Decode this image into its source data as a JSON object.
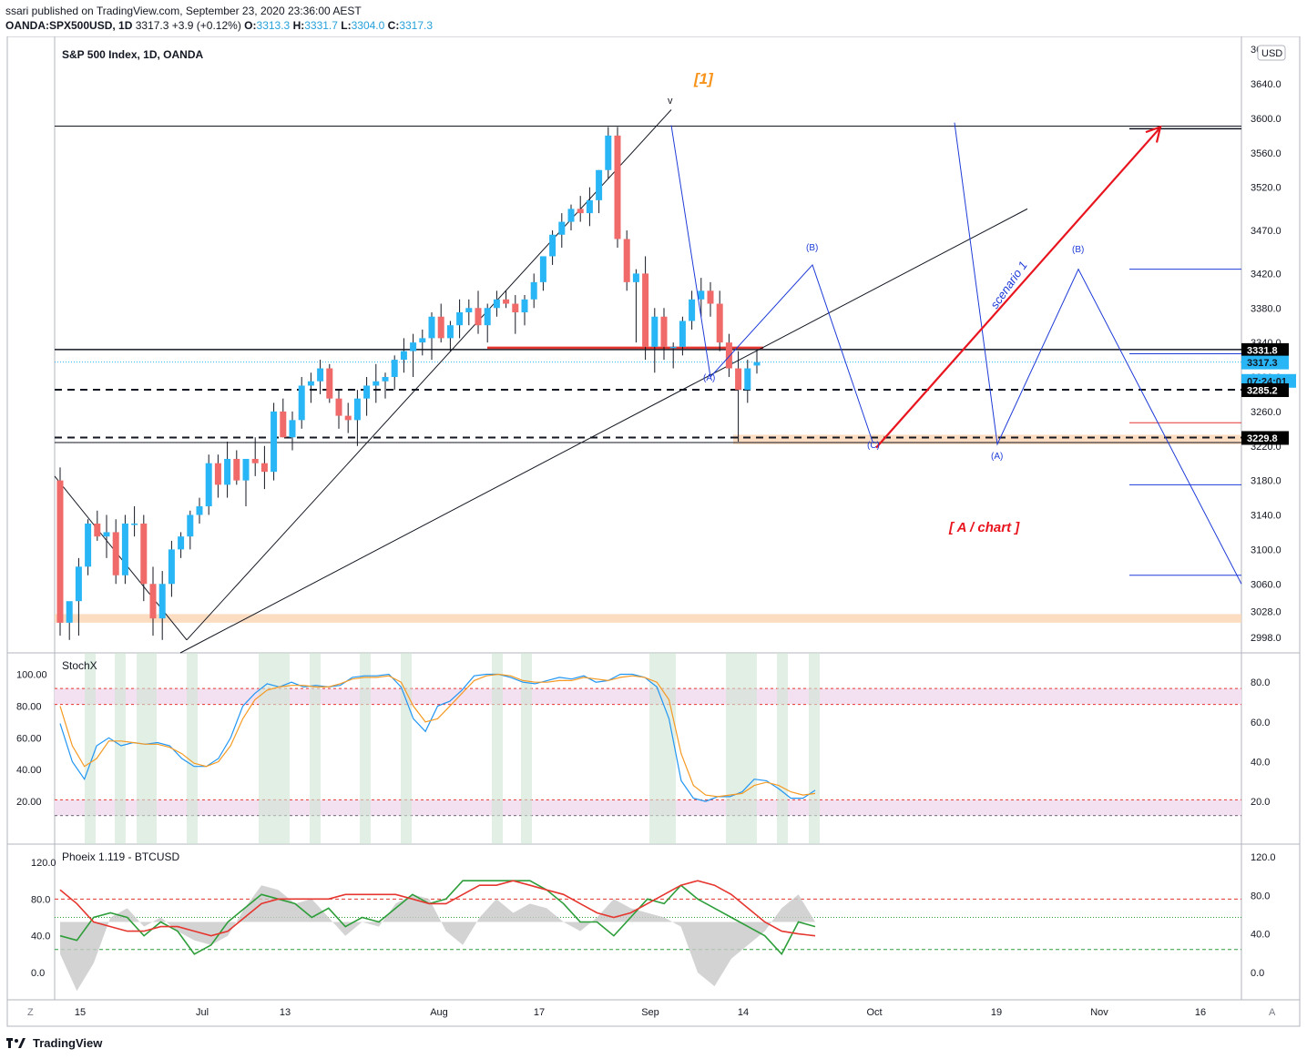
{
  "header": {
    "published": "ssari published on TradingView.com, September 23, 2020 23:36:00 AEST",
    "symbol": "OANDA:SPX500USD, 1D",
    "last": "3317.3",
    "change": "+3.9 (+0.12%)",
    "o_label": "O:",
    "o": "3313.3",
    "h_label": "H:",
    "h": "3331.7",
    "l_label": "L:",
    "l": "3304.0",
    "c_label": "C:",
    "c": "3317.3"
  },
  "chart_data": [
    {
      "type": "candlestick",
      "title": "S&P 500 Index, 1D, OANDA",
      "currency": "USD",
      "ylim": [
        2980,
        3695
      ],
      "y_ticks": [
        "2998.0",
        "3028.0",
        "3060.0",
        "3100.0",
        "3140.0",
        "3180.0",
        "3220.0",
        "3260.0",
        "3300.0",
        "3340.0",
        "3380.0",
        "3420.0",
        "3470.0",
        "3520.0",
        "3560.0",
        "3600.0",
        "3640.0",
        "3680.0"
      ],
      "x_ticks": [
        "15",
        "Jul",
        "13",
        "Aug",
        "17",
        "Sep",
        "14",
        "Oct",
        "19",
        "Nov",
        "16"
      ],
      "candles": [
        [
          3180,
          3195,
          3000,
          3015
        ],
        [
          3015,
          3035,
          2995,
          3040
        ],
        [
          3040,
          3090,
          3000,
          3080
        ],
        [
          3080,
          3135,
          3070,
          3130
        ],
        [
          3130,
          3145,
          3110,
          3115
        ],
        [
          3115,
          3140,
          3090,
          3120
        ],
        [
          3120,
          3135,
          3060,
          3070
        ],
        [
          3070,
          3140,
          3060,
          3130
        ],
        [
          3130,
          3150,
          3115,
          3130
        ],
        [
          3130,
          3140,
          3040,
          3060
        ],
        [
          3060,
          3080,
          3000,
          3020
        ],
        [
          3020,
          3075,
          2995,
          3060
        ],
        [
          3060,
          3110,
          3045,
          3100
        ],
        [
          3100,
          3120,
          3090,
          3115
        ],
        [
          3115,
          3145,
          3100,
          3140
        ],
        [
          3140,
          3160,
          3130,
          3150
        ],
        [
          3150,
          3210,
          3140,
          3200
        ],
        [
          3200,
          3210,
          3160,
          3175
        ],
        [
          3175,
          3225,
          3160,
          3205
        ],
        [
          3205,
          3215,
          3175,
          3180
        ],
        [
          3180,
          3205,
          3150,
          3205
        ],
        [
          3205,
          3230,
          3185,
          3200
        ],
        [
          3200,
          3220,
          3170,
          3190
        ],
        [
          3190,
          3270,
          3180,
          3260
        ],
        [
          3260,
          3275,
          3230,
          3230
        ],
        [
          3230,
          3260,
          3215,
          3250
        ],
        [
          3250,
          3300,
          3240,
          3290
        ],
        [
          3290,
          3305,
          3270,
          3295
        ],
        [
          3295,
          3320,
          3280,
          3310
        ],
        [
          3310,
          3315,
          3270,
          3275
        ],
        [
          3275,
          3285,
          3240,
          3255
        ],
        [
          3255,
          3270,
          3235,
          3250
        ],
        [
          3250,
          3285,
          3220,
          3275
        ],
        [
          3275,
          3300,
          3255,
          3290
        ],
        [
          3290,
          3315,
          3270,
          3295
        ],
        [
          3295,
          3305,
          3275,
          3300
        ],
        [
          3300,
          3325,
          3285,
          3320
        ],
        [
          3320,
          3345,
          3305,
          3330
        ],
        [
          3330,
          3350,
          3300,
          3340
        ],
        [
          3340,
          3355,
          3325,
          3345
        ],
        [
          3345,
          3375,
          3320,
          3370
        ],
        [
          3370,
          3385,
          3340,
          3345
        ],
        [
          3345,
          3365,
          3330,
          3360
        ],
        [
          3360,
          3390,
          3345,
          3375
        ],
        [
          3375,
          3390,
          3360,
          3380
        ],
        [
          3380,
          3400,
          3350,
          3360
        ],
        [
          3360,
          3385,
          3340,
          3380
        ],
        [
          3380,
          3400,
          3370,
          3390
        ],
        [
          3390,
          3400,
          3380,
          3385
        ],
        [
          3385,
          3395,
          3350,
          3375
        ],
        [
          3375,
          3395,
          3360,
          3390
        ],
        [
          3390,
          3420,
          3380,
          3410
        ],
        [
          3410,
          3440,
          3400,
          3440
        ],
        [
          3440,
          3470,
          3430,
          3465
        ],
        [
          3465,
          3490,
          3450,
          3480
        ],
        [
          3480,
          3500,
          3470,
          3495
        ],
        [
          3495,
          3510,
          3480,
          3490
        ],
        [
          3490,
          3520,
          3475,
          3505
        ],
        [
          3505,
          3540,
          3490,
          3540
        ],
        [
          3540,
          3590,
          3530,
          3580
        ],
        [
          3580,
          3590,
          3450,
          3460
        ],
        [
          3460,
          3470,
          3400,
          3410
        ],
        [
          3410,
          3425,
          3340,
          3420
        ],
        [
          3420,
          3440,
          3320,
          3335
        ],
        [
          3335,
          3380,
          3305,
          3370
        ],
        [
          3370,
          3380,
          3320,
          3335
        ],
        [
          3335,
          3340,
          3310,
          3335
        ],
        [
          3335,
          3370,
          3325,
          3365
        ],
        [
          3365,
          3400,
          3355,
          3390
        ],
        [
          3390,
          3415,
          3370,
          3400
        ],
        [
          3400,
          3410,
          3370,
          3385
        ],
        [
          3385,
          3400,
          3330,
          3340
        ],
        [
          3340,
          3350,
          3300,
          3310
        ],
        [
          3310,
          3330,
          3225,
          3285
        ],
        [
          3285,
          3320,
          3270,
          3310
        ],
        [
          3313.3,
          3331.7,
          3304.0,
          3317.3
        ]
      ],
      "price_badges": [
        {
          "label": "3331.8",
          "value": 3331.8,
          "bg": "#000000",
          "fg": "#ffffff"
        },
        {
          "label": "3317.3",
          "value": 3317.3,
          "bg": "#29b6f6",
          "fg": "#131722"
        },
        {
          "label": "07:24:01",
          "value": 3296,
          "bg": "#29b6f6",
          "fg": "#131722"
        },
        {
          "label": "3285.2",
          "value": 3285.2,
          "bg": "#000000",
          "fg": "#ffffff"
        },
        {
          "label": "3229.8",
          "value": 3229.8,
          "bg": "#000000",
          "fg": "#ffffff"
        }
      ],
      "annotations": [
        {
          "text": "[1]",
          "color": "#f7931a",
          "x_index": 40,
          "y": 3660
        },
        {
          "text": "v",
          "color": "#131722",
          "x_index": 59,
          "y": 3630
        },
        {
          "text": "(A)",
          "color": "#1e3bd8",
          "x_index": 63,
          "y": 3290
        },
        {
          "text": "(B)",
          "color": "#1e3bd8",
          "x_index": 72,
          "y": 3445
        },
        {
          "text": "(C)",
          "color": "#1e3bd8",
          "x_index": 79,
          "y": 3210
        },
        {
          "text": "(A)",
          "color": "#1e3bd8",
          "x_index": 92,
          "y": 3198
        },
        {
          "text": "(B)",
          "color": "#1e3bd8",
          "x_index": 98,
          "y": 3440
        },
        {
          "text": "scenario 1",
          "color": "#1e3bd8",
          "x_index": 90,
          "y": 3390
        },
        {
          "text": "[ A / chart ]",
          "color": "#e8141e",
          "x_index": 90,
          "y": 3115
        }
      ],
      "levels": [
        3591,
        3331.8,
        3285.2,
        3229.8,
        3224
      ]
    },
    {
      "type": "line",
      "title": "StochX",
      "left_ticks": [
        "20.00",
        "40.00",
        "60.00",
        "80.00",
        "100.00"
      ],
      "right_ticks": [
        "20.0",
        "40.0",
        "60.0",
        "80.0"
      ],
      "series": [
        {
          "color": "#2196f3",
          "values": [
            69,
            45,
            34,
            55,
            60,
            55,
            57,
            56,
            57,
            55,
            47,
            42,
            42,
            47,
            60,
            80,
            88,
            94,
            92,
            95,
            92,
            93,
            92,
            93,
            98,
            99,
            99,
            100,
            92,
            72,
            64,
            80,
            83,
            90,
            99,
            100,
            100,
            98,
            95,
            94,
            96,
            98,
            97,
            99,
            95,
            96,
            100,
            100,
            98,
            92,
            72,
            33,
            22,
            20,
            23,
            23,
            26,
            34,
            33,
            28,
            22,
            22,
            27
          ]
        },
        {
          "color": "#f59a23",
          "values": [
            80,
            55,
            42,
            47,
            58,
            58,
            57,
            56,
            56,
            54,
            50,
            44,
            42,
            45,
            55,
            72,
            84,
            90,
            92,
            93,
            93,
            92,
            92,
            94,
            97,
            98,
            98,
            99,
            95,
            80,
            70,
            72,
            80,
            88,
            96,
            99,
            100,
            99,
            96,
            95,
            95,
            96,
            96,
            98,
            97,
            96,
            98,
            99,
            98,
            95,
            84,
            50,
            30,
            24,
            23,
            24,
            25,
            30,
            32,
            30,
            26,
            24,
            25
          ]
        }
      ]
    },
    {
      "type": "line",
      "title": "Phoeix 1.119 - BTCUSD",
      "left_ticks": [
        "0.0",
        "40.0",
        "80.0",
        "120.0"
      ],
      "right_ticks": [
        "0.0",
        "40.0",
        "80.0",
        "120.0"
      ],
      "series": [
        {
          "color": "#2e9e3a",
          "values": [
            40,
            35,
            60,
            65,
            60,
            40,
            55,
            45,
            20,
            30,
            55,
            70,
            85,
            80,
            75,
            60,
            70,
            50,
            60,
            55,
            70,
            85,
            75,
            80,
            100,
            100,
            100,
            100,
            100,
            90,
            75,
            55,
            55,
            40,
            60,
            80,
            75,
            95,
            80,
            70,
            60,
            50,
            40,
            20,
            55,
            50
          ]
        },
        {
          "color": "#e5362f",
          "values": [
            90,
            75,
            55,
            50,
            45,
            45,
            50,
            50,
            45,
            40,
            45,
            60,
            75,
            80,
            80,
            80,
            80,
            85,
            85,
            85,
            85,
            80,
            75,
            75,
            85,
            95,
            95,
            100,
            95,
            90,
            85,
            75,
            65,
            60,
            65,
            75,
            85,
            95,
            100,
            95,
            85,
            70,
            55,
            45,
            42,
            40
          ]
        }
      ]
    }
  ],
  "footer": {
    "brand": "TradingView"
  }
}
